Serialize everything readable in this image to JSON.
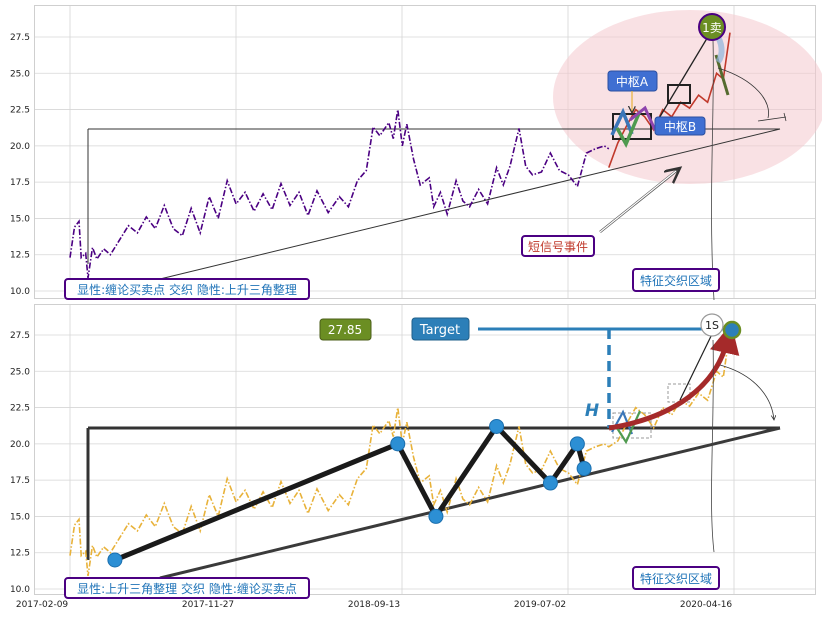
{
  "chart_data": [
    {
      "type": "line",
      "panel": "top",
      "ylim": [
        9.6,
        29.5
      ],
      "yticks": [
        "10.0",
        "12.5",
        "15.0",
        "17.5",
        "20.0",
        "22.5",
        "25.0",
        "27.5"
      ],
      "grid": true,
      "series": [
        {
          "color": "#4b0082",
          "style": "dash-dot",
          "points": [
            [
              0,
              12.3
            ],
            [
              2,
              14.4
            ],
            [
              4,
              14.8
            ],
            [
              5,
              12.3
            ],
            [
              7,
              12.6
            ],
            [
              8,
              10.9
            ],
            [
              10,
              13.0
            ],
            [
              12,
              12.2
            ],
            [
              15,
              12.9
            ],
            [
              18,
              12.5
            ],
            [
              22,
              13.5
            ],
            [
              26,
              14.5
            ],
            [
              30,
              14.0
            ],
            [
              34,
              15.1
            ],
            [
              38,
              14.3
            ],
            [
              42,
              15.9
            ],
            [
              46,
              14.3
            ],
            [
              50,
              13.8
            ],
            [
              54,
              15.7
            ],
            [
              58,
              14.0
            ],
            [
              62,
              16.5
            ],
            [
              66,
              15.0
            ],
            [
              70,
              17.6
            ],
            [
              74,
              16.0
            ],
            [
              78,
              16.8
            ],
            [
              82,
              15.5
            ],
            [
              86,
              16.7
            ],
            [
              90,
              15.6
            ],
            [
              94,
              17.4
            ],
            [
              98,
              15.9
            ],
            [
              102,
              16.8
            ],
            [
              106,
              15.2
            ],
            [
              110,
              16.9
            ],
            [
              115,
              15.4
            ],
            [
              120,
              16.5
            ],
            [
              124,
              15.8
            ],
            [
              128,
              17.6
            ],
            [
              132,
              18.3
            ],
            [
              135,
              21.3
            ],
            [
              138,
              20.7
            ],
            [
              142,
              21.6
            ],
            [
              144,
              20.5
            ],
            [
              146,
              22.5
            ],
            [
              148,
              20.0
            ],
            [
              150,
              21.5
            ],
            [
              153,
              19.1
            ],
            [
              156,
              17.3
            ],
            [
              160,
              17.8
            ],
            [
              162,
              15.8
            ],
            [
              165,
              16.8
            ],
            [
              168,
              15.3
            ],
            [
              172,
              17.6
            ],
            [
              175,
              16.2
            ],
            [
              178,
              15.8
            ],
            [
              182,
              17.0
            ],
            [
              186,
              16.0
            ],
            [
              190,
              18.5
            ],
            [
              193,
              17.3
            ],
            [
              196,
              18.6
            ],
            [
              200,
              21.2
            ],
            [
              203,
              18.6
            ],
            [
              206,
              18.0
            ],
            [
              210,
              18.2
            ],
            [
              214,
              19.5
            ],
            [
              218,
              18.3
            ],
            [
              222,
              18.0
            ],
            [
              226,
              17.2
            ],
            [
              230,
              19.5
            ],
            [
              234,
              19.8
            ],
            [
              238,
              20.0
            ],
            [
              240,
              19.8
            ]
          ]
        },
        {
          "color": "#c0392b",
          "style": "solid",
          "points": [
            [
              240,
              18.5
            ],
            [
              244,
              20.2
            ],
            [
              248,
              21.4
            ],
            [
              252,
              22.5
            ],
            [
              256,
              22.0
            ],
            [
              260,
              21.1
            ],
            [
              264,
              22.5
            ],
            [
              268,
              22.0
            ],
            [
              272,
              23.0
            ],
            [
              276,
              22.6
            ],
            [
              280,
              23.5
            ],
            [
              284,
              23.0
            ],
            [
              288,
              25.0
            ],
            [
              291,
              24.6
            ],
            [
              294,
              27.8
            ]
          ]
        }
      ],
      "annotations": {
        "label_left": "显性:缠论买卖点 交织 隐性:上升三角整理",
        "label_signal": "短信号事件",
        "label_zone": "特征交织区域",
        "label_a": "中枢A",
        "label_b": "中枢B",
        "marker_sell": "1卖"
      }
    },
    {
      "type": "line",
      "panel": "bottom",
      "ylim": [
        9.6,
        29.5
      ],
      "yticks": [
        "10.0",
        "12.5",
        "15.0",
        "17.5",
        "20.0",
        "22.5",
        "25.0",
        "27.5"
      ],
      "xticks": [
        "2017-02-09",
        "2017-11-27",
        "2018-09-13",
        "2019-07-02",
        "2020-04-16"
      ],
      "grid": true,
      "series": [
        {
          "color": "#e8b23a",
          "style": "dash-dot",
          "points": [
            [
              0,
              12.3
            ],
            [
              2,
              14.4
            ],
            [
              4,
              14.8
            ],
            [
              5,
              12.3
            ],
            [
              7,
              12.6
            ],
            [
              8,
              10.9
            ],
            [
              10,
              13.0
            ],
            [
              12,
              12.2
            ],
            [
              15,
              12.9
            ],
            [
              18,
              12.5
            ],
            [
              22,
              13.5
            ],
            [
              26,
              14.5
            ],
            [
              30,
              14.0
            ],
            [
              34,
              15.1
            ],
            [
              38,
              14.3
            ],
            [
              42,
              15.9
            ],
            [
              46,
              14.3
            ],
            [
              50,
              13.8
            ],
            [
              54,
              15.7
            ],
            [
              58,
              14.0
            ],
            [
              62,
              16.5
            ],
            [
              66,
              15.0
            ],
            [
              70,
              17.6
            ],
            [
              74,
              16.0
            ],
            [
              78,
              16.8
            ],
            [
              82,
              15.5
            ],
            [
              86,
              16.7
            ],
            [
              90,
              15.6
            ],
            [
              94,
              17.4
            ],
            [
              98,
              15.9
            ],
            [
              102,
              16.8
            ],
            [
              106,
              15.2
            ],
            [
              110,
              16.9
            ],
            [
              115,
              15.4
            ],
            [
              120,
              16.5
            ],
            [
              124,
              15.8
            ],
            [
              128,
              17.6
            ],
            [
              132,
              18.3
            ],
            [
              135,
              21.3
            ],
            [
              138,
              20.7
            ],
            [
              142,
              21.6
            ],
            [
              144,
              20.5
            ],
            [
              146,
              22.5
            ],
            [
              148,
              20.0
            ],
            [
              150,
              21.5
            ],
            [
              153,
              19.1
            ],
            [
              156,
              17.3
            ],
            [
              160,
              17.8
            ],
            [
              162,
              15.8
            ],
            [
              165,
              16.8
            ],
            [
              168,
              15.3
            ],
            [
              172,
              17.6
            ],
            [
              175,
              16.2
            ],
            [
              178,
              15.8
            ],
            [
              182,
              17.0
            ],
            [
              186,
              16.0
            ],
            [
              190,
              18.5
            ],
            [
              193,
              17.3
            ],
            [
              196,
              18.6
            ],
            [
              200,
              21.2
            ],
            [
              203,
              18.6
            ],
            [
              206,
              18.0
            ],
            [
              210,
              18.2
            ],
            [
              214,
              19.5
            ],
            [
              218,
              18.3
            ],
            [
              222,
              18.0
            ],
            [
              226,
              17.2
            ],
            [
              230,
              19.5
            ],
            [
              234,
              19.8
            ],
            [
              238,
              20.0
            ],
            [
              240,
              19.8
            ],
            [
              244,
              20.2
            ],
            [
              248,
              21.4
            ],
            [
              252,
              22.5
            ],
            [
              256,
              22.0
            ],
            [
              260,
              21.1
            ],
            [
              264,
              22.5
            ],
            [
              268,
              22.0
            ],
            [
              272,
              23.0
            ],
            [
              276,
              22.6
            ],
            [
              280,
              23.5
            ],
            [
              284,
              23.0
            ],
            [
              288,
              25.0
            ],
            [
              291,
              24.6
            ],
            [
              294,
              27.8
            ]
          ]
        }
      ],
      "zigzag_points": [
        [
          20,
          12.0
        ],
        [
          146,
          20.0
        ],
        [
          163,
          15.0
        ],
        [
          190,
          21.2
        ],
        [
          214,
          17.3
        ],
        [
          226,
          20.0
        ],
        [
          229,
          18.3
        ]
      ],
      "target_value": "27.85",
      "annotations": {
        "label_left": "显性:上升三角整理 交织 隐性:缠论买卖点",
        "label_zone": "特征交织区域",
        "label_target": "Target",
        "label_h": "H",
        "marker_1s": "1S"
      }
    }
  ]
}
